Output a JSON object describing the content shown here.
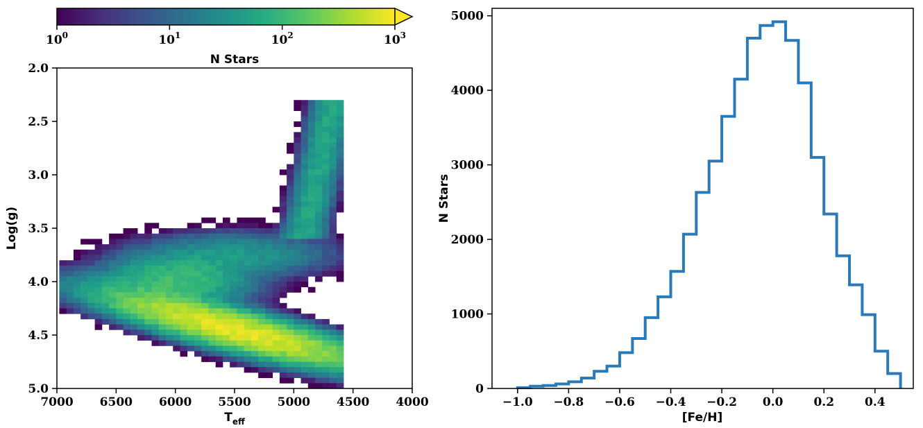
{
  "colorbar": {
    "label": "N Stars",
    "scale": "log",
    "colormap": "viridis",
    "extend": "max",
    "ticks": [
      {
        "base": "10",
        "exp": "0"
      },
      {
        "base": "10",
        "exp": "1"
      },
      {
        "base": "10",
        "exp": "2"
      },
      {
        "base": "10",
        "exp": "3"
      }
    ]
  },
  "chart_data": [
    {
      "type": "heatmap",
      "title": "",
      "xlabel_main": "T",
      "xlabel_sub": "eff",
      "ylabel": "Log(g)",
      "xlim": [
        7000,
        4000
      ],
      "ylim": [
        5.0,
        2.0
      ],
      "x_ticks": [
        "7000",
        "6500",
        "6000",
        "5500",
        "5000",
        "4500",
        "4000"
      ],
      "y_ticks": [
        "2.0",
        "2.5",
        "3.0",
        "3.5",
        "4.0",
        "4.5",
        "5.0"
      ],
      "x_tick_values": [
        7000,
        6500,
        6000,
        5500,
        5000,
        4500,
        4000
      ],
      "y_tick_values": [
        2.0,
        2.5,
        3.0,
        3.5,
        4.0,
        4.5,
        5.0
      ],
      "bin_width_teff": 60,
      "bin_height_logg": 0.05,
      "density_model": {
        "dwarf_peak": {
          "teff": 5500,
          "logg": 4.45,
          "max_count": 800
        },
        "subgiant_branch": {
          "teff_range": [
            6200,
            4900
          ],
          "logg_range": [
            3.6,
            4.1
          ]
        },
        "giant_branch": {
          "teff_range": [
            5100,
            4700
          ],
          "logg_range": [
            2.3,
            3.5
          ]
        }
      },
      "color_range": [
        1,
        1000
      ]
    },
    {
      "type": "line",
      "style": "step",
      "title": "",
      "xlabel": "[Fe/H]",
      "ylabel": "N Stars",
      "xlim": [
        -1.1,
        0.55
      ],
      "ylim": [
        0,
        5100
      ],
      "x_ticks": [
        "−1.0",
        "−0.8",
        "−0.6",
        "−0.4",
        "−0.2",
        "0.0",
        "0.2",
        "0.4"
      ],
      "x_tick_values": [
        -1.0,
        -0.8,
        -0.6,
        -0.4,
        -0.2,
        0.0,
        0.2,
        0.4
      ],
      "y_ticks": [
        "0",
        "1000",
        "2000",
        "3000",
        "4000",
        "5000"
      ],
      "y_tick_values": [
        0,
        1000,
        2000,
        3000,
        4000,
        5000
      ],
      "color": "#2a7ab9",
      "bin_edges": [
        -1.0,
        -0.95,
        -0.9,
        -0.85,
        -0.8,
        -0.75,
        -0.7,
        -0.65,
        -0.6,
        -0.55,
        -0.5,
        -0.45,
        -0.4,
        -0.35,
        -0.3,
        -0.25,
        -0.2,
        -0.15,
        -0.1,
        -0.05,
        0.0,
        0.05,
        0.1,
        0.15,
        0.2,
        0.25,
        0.3,
        0.35,
        0.4,
        0.45,
        0.5
      ],
      "counts": [
        10,
        30,
        40,
        60,
        90,
        140,
        230,
        300,
        480,
        670,
        950,
        1230,
        1570,
        2070,
        2630,
        3050,
        3650,
        4150,
        4700,
        4870,
        4920,
        4670,
        4100,
        3100,
        2340,
        1780,
        1390,
        990,
        500,
        200
      ]
    }
  ]
}
